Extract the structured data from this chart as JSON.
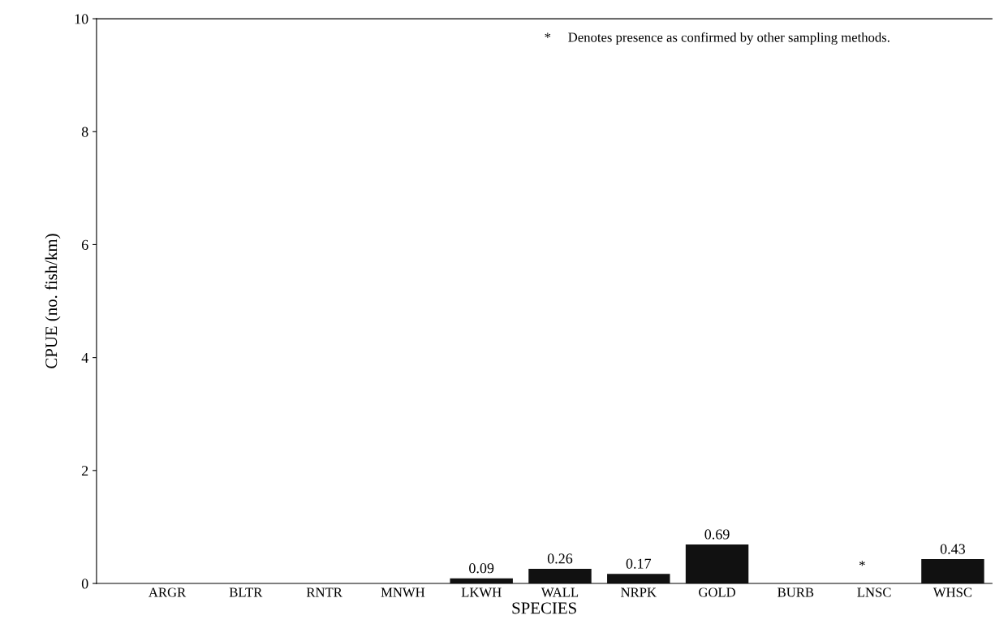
{
  "chart_data": {
    "type": "bar",
    "xlabel": "SPECIES",
    "ylabel": "CPUE (no. fish/km)",
    "categories": [
      "ARGR",
      "BLTR",
      "RNTR",
      "MNWH",
      "LKWH",
      "WALL",
      "NRPK",
      "GOLD",
      "BURB",
      "LNSC",
      "WHSC"
    ],
    "values": [
      0,
      0,
      0,
      0,
      0.09,
      0.26,
      0.17,
      0.69,
      0,
      0,
      0.43
    ],
    "value_labels": [
      null,
      null,
      null,
      null,
      "0.09",
      "0.26",
      "0.17",
      "0.69",
      null,
      null,
      "0.43"
    ],
    "color": "#111111",
    "ylim": [
      0,
      10
    ],
    "yticks": [
      0,
      2,
      4,
      6,
      8,
      10
    ],
    "grid": false,
    "legend": false,
    "annotations": [
      "*     Denotes presence as confirmed by other sampling methods.",
      "*"
    ]
  }
}
